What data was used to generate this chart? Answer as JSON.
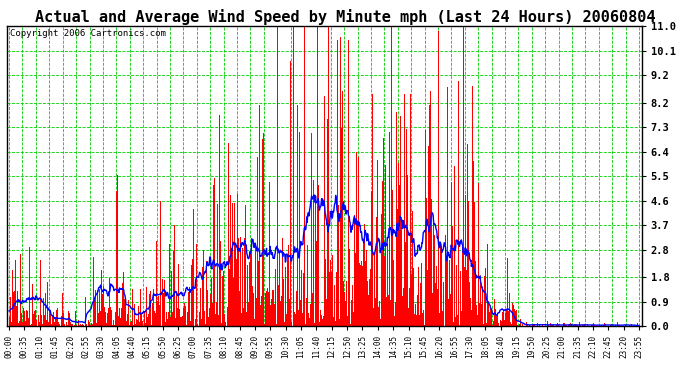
{
  "title": "Actual and Average Wind Speed by Minute mph (Last 24 Hours) 20060804",
  "copyright_text": "Copyright 2006 Cartronics.com",
  "ylim": [
    0.0,
    11.0
  ],
  "yticks": [
    0.0,
    0.9,
    1.8,
    2.8,
    3.7,
    4.6,
    5.5,
    6.4,
    7.3,
    8.2,
    9.2,
    10.1,
    11.0
  ],
  "ytick_labels": [
    "0.0",
    "0.9",
    "1.8",
    "2.8",
    "3.7",
    "4.6",
    "5.5",
    "6.4",
    "7.3",
    "8.2",
    "9.2",
    "10.1",
    "11.0"
  ],
  "xtick_labels": [
    "00:00",
    "00:35",
    "01:10",
    "01:45",
    "02:20",
    "02:55",
    "03:30",
    "04:05",
    "04:40",
    "05:15",
    "05:50",
    "06:25",
    "07:00",
    "07:35",
    "08:10",
    "08:45",
    "09:20",
    "09:55",
    "10:30",
    "11:05",
    "11:40",
    "12:15",
    "12:50",
    "13:25",
    "14:00",
    "14:35",
    "15:10",
    "15:45",
    "16:20",
    "16:55",
    "17:30",
    "18:05",
    "18:40",
    "19:15",
    "19:50",
    "20:25",
    "21:00",
    "21:35",
    "22:10",
    "22:45",
    "23:20",
    "23:55"
  ],
  "bar_color": "#FF0000",
  "line_color": "#0000FF",
  "grid_color": "#00CC00",
  "bg_color": "#FFFFFF",
  "border_color": "#000000",
  "title_fontsize": 11,
  "copyright_fontsize": 6.5,
  "seed": 12345
}
